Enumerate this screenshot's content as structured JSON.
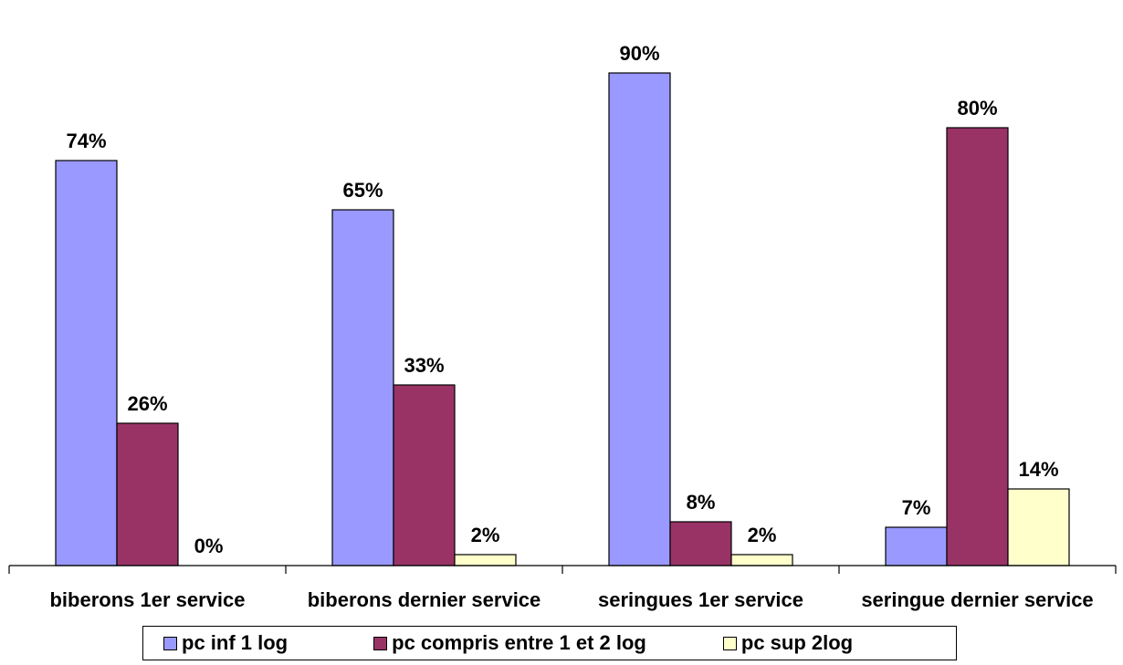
{
  "chart_data": {
    "type": "bar",
    "categories": [
      "biberons 1er service",
      "biberons dernier service",
      "seringues 1er service",
      "seringue dernier service"
    ],
    "series": [
      {
        "name": "pc inf 1 log",
        "values": [
          74,
          65,
          90,
          7
        ],
        "labels": [
          "74%",
          "65%",
          "90%",
          "7%"
        ],
        "color": "#9999ff"
      },
      {
        "name": "pc compris entre 1 et 2 log",
        "values": [
          26,
          33,
          8,
          80
        ],
        "labels": [
          "26%",
          "33%",
          "8%",
          "80%"
        ],
        "color": "#993366"
      },
      {
        "name": "pc sup 2log",
        "values": [
          0,
          2,
          2,
          14
        ],
        "labels": [
          "0%",
          "2%",
          "2%",
          "14%"
        ],
        "color": "#ffffcc"
      }
    ],
    "ylim": [
      0,
      100
    ],
    "grid": false,
    "legend_position": "bottom"
  }
}
